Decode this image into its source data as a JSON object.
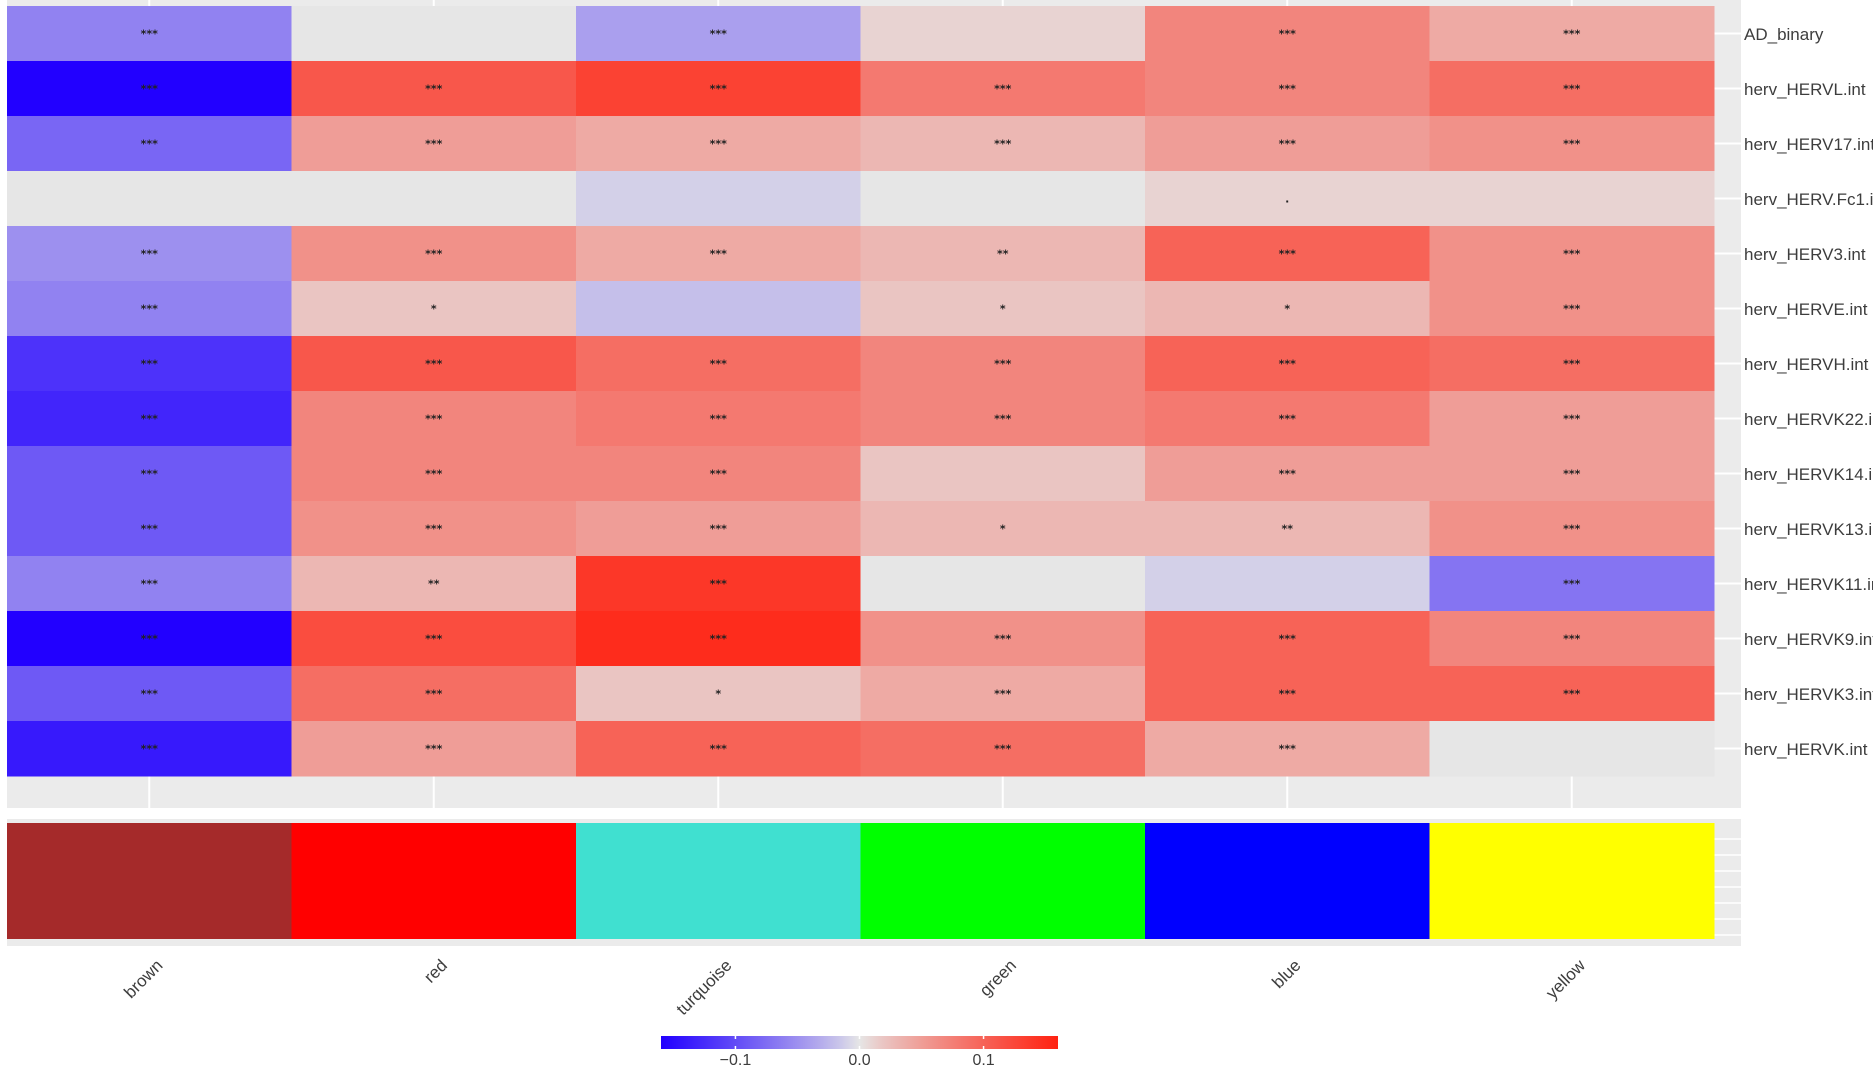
{
  "chart_data": {
    "type": "heatmap",
    "rows": [
      "AD_binary",
      "herv_HERVL.int",
      "herv_HERV17.int",
      "herv_HERV.Fc1.int",
      "herv_HERV3.int",
      "herv_HERVE.int",
      "herv_HERVH.int",
      "herv_HERVK22.int",
      "herv_HERVK14.int",
      "herv_HERVK13.int",
      "herv_HERVK11.int",
      "herv_HERVK9.int",
      "herv_HERVK3.int",
      "herv_HERVK.int"
    ],
    "columns": [
      "brown",
      "red",
      "turquoise",
      "green",
      "blue",
      "yellow"
    ],
    "values": [
      [
        -0.06,
        0.0,
        -0.04,
        0.01,
        0.07,
        0.04
      ],
      [
        -0.16,
        0.11,
        0.13,
        0.08,
        0.07,
        0.09
      ],
      [
        -0.08,
        0.05,
        0.04,
        0.03,
        0.05,
        0.06
      ],
      [
        0.0,
        0.0,
        -0.01,
        0.0,
        0.01,
        0.01
      ],
      [
        -0.05,
        0.06,
        0.04,
        0.03,
        0.1,
        0.06
      ],
      [
        -0.06,
        0.02,
        -0.02,
        0.02,
        0.03,
        0.06
      ],
      [
        -0.12,
        0.11,
        0.09,
        0.07,
        0.1,
        0.09
      ],
      [
        -0.13,
        0.07,
        0.08,
        0.07,
        0.08,
        0.05
      ],
      [
        -0.09,
        0.07,
        0.07,
        0.02,
        0.05,
        0.05
      ],
      [
        -0.09,
        0.06,
        0.05,
        0.03,
        0.03,
        0.06
      ],
      [
        -0.06,
        0.03,
        0.14,
        0.0,
        -0.01,
        -0.07
      ],
      [
        -0.17,
        0.12,
        0.15,
        0.06,
        0.1,
        0.07
      ],
      [
        -0.09,
        0.09,
        0.02,
        0.04,
        0.1,
        0.1
      ],
      [
        -0.14,
        0.05,
        0.1,
        0.09,
        0.04,
        0.0
      ]
    ],
    "significance": [
      [
        "***",
        "",
        "***",
        "",
        "***",
        "***"
      ],
      [
        "***",
        "***",
        "***",
        "***",
        "***",
        "***"
      ],
      [
        "***",
        "***",
        "***",
        "***",
        "***",
        "***"
      ],
      [
        "",
        "",
        "",
        "",
        ".",
        ""
      ],
      [
        "***",
        "***",
        "***",
        "**",
        "***",
        "***"
      ],
      [
        "***",
        "*",
        "",
        "*",
        "*",
        "***"
      ],
      [
        "***",
        "***",
        "***",
        "***",
        "***",
        "***"
      ],
      [
        "***",
        "***",
        "***",
        "***",
        "***",
        "***"
      ],
      [
        "***",
        "***",
        "***",
        "",
        "***",
        "***"
      ],
      [
        "***",
        "***",
        "***",
        "*",
        "**",
        "***"
      ],
      [
        "***",
        "**",
        "***",
        "",
        "",
        "***"
      ],
      [
        "***",
        "***",
        "***",
        "***",
        "***",
        "***"
      ],
      [
        "***",
        "***",
        "*",
        "***",
        "***",
        "***"
      ],
      [
        "***",
        "***",
        "***",
        "***",
        "***",
        ""
      ]
    ],
    "module_colors": [
      "#A52A2A",
      "#FF0000",
      "#40E0D0",
      "#00FF00",
      "#0000FF",
      "#FFFF00"
    ],
    "color_scale": {
      "low": "#2200FF",
      "mid": "#E6E6E6",
      "high": "#FF2211",
      "domain": [
        -0.16,
        0.16
      ],
      "ticks": [
        -0.1,
        0.0,
        0.1
      ],
      "tick_labels": [
        "−0.1",
        "0.0",
        "0.1"
      ]
    },
    "title": "",
    "xlabel": "",
    "ylabel": "",
    "legend_position": "bottom"
  }
}
